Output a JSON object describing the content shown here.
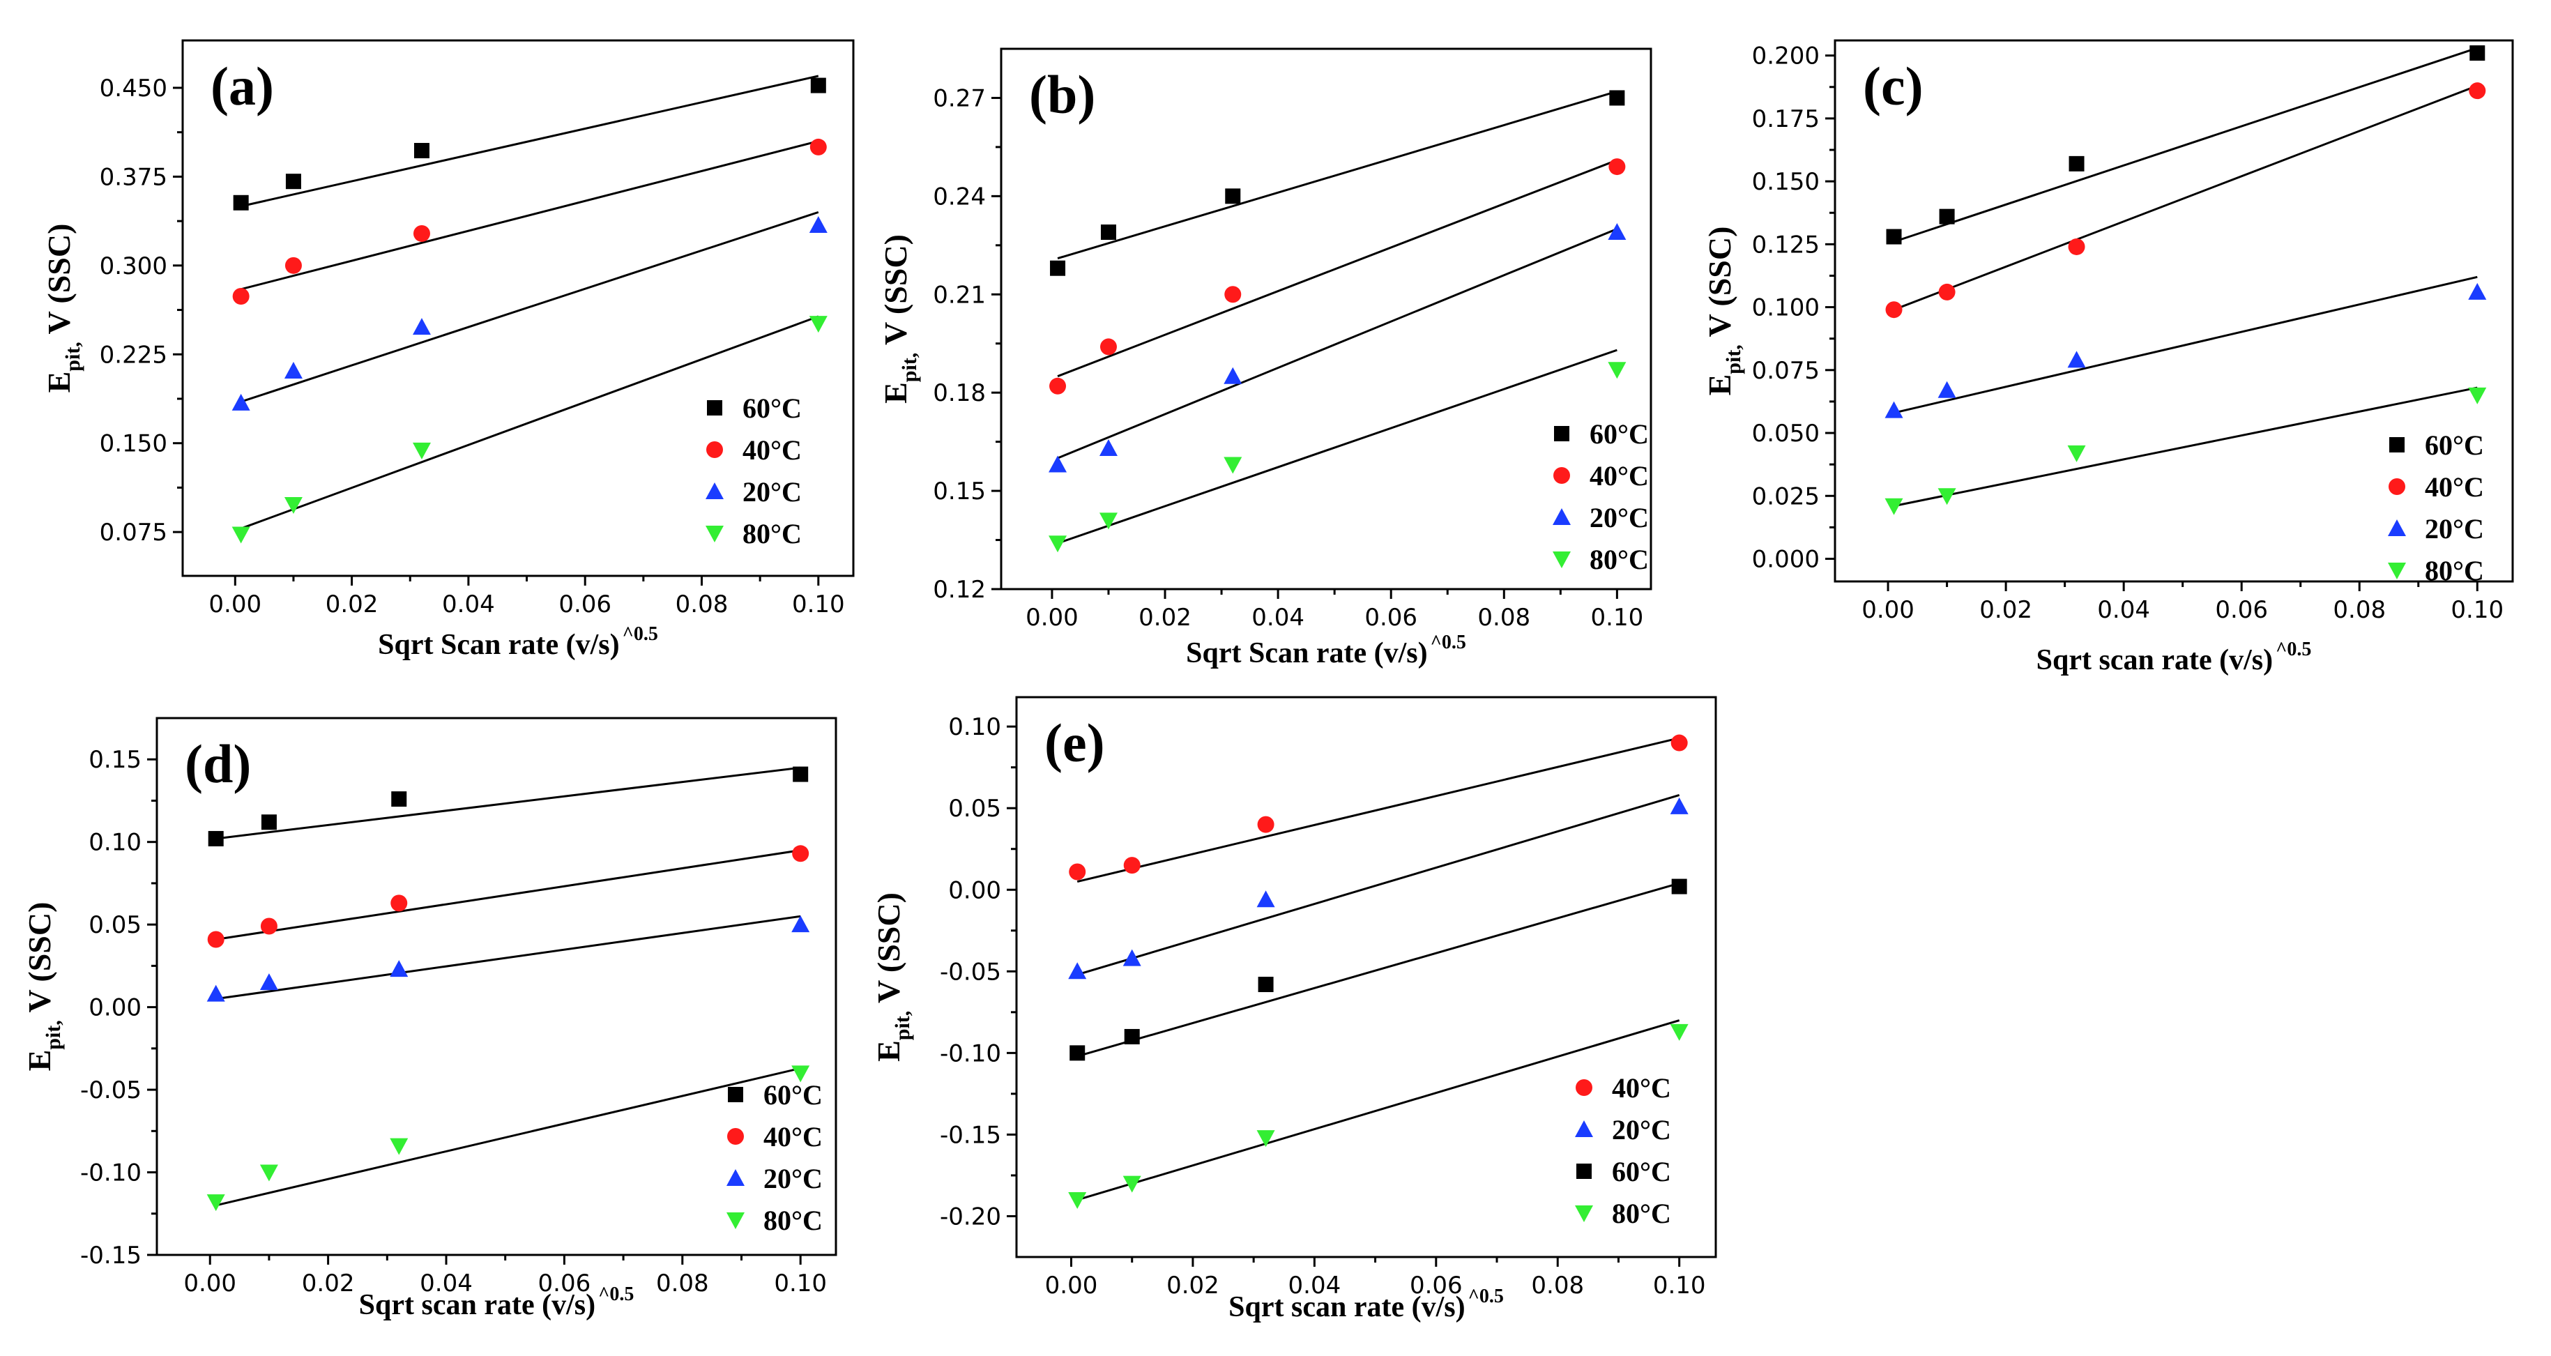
{
  "figure": {
    "colors": {
      "60°C": "#000000",
      "40°C": "#ff1a1a",
      "20°C": "#1a3cff",
      "80°C": "#33ee33"
    },
    "markers": {
      "60°C": "square",
      "40°C": "circle",
      "20°C": "triangle-up",
      "80°C": "triangle-down"
    }
  },
  "chart_data": [
    {
      "type": "scatter",
      "panel_label": "(a)",
      "xlabel": "Sqrt Scan rate (v/s)",
      "xlabel_sup": "^0.5",
      "ylabel_main": "E",
      "ylabel_sub": "pit,",
      "ylabel_rest": " V (SSC)",
      "xlim": [
        -0.009,
        0.106
      ],
      "ylim": [
        0.038,
        0.49
      ],
      "xticks": [
        0.0,
        0.02,
        0.04,
        0.06,
        0.08,
        0.1
      ],
      "xtick_labels": [
        "0.00",
        "0.02",
        "0.04",
        "0.06",
        "0.08",
        "0.10"
      ],
      "yticks": [
        0.075,
        0.15,
        0.225,
        0.3,
        0.375,
        0.45
      ],
      "ytick_labels": [
        "0.075",
        "0.150",
        "0.225",
        "0.300",
        "0.375",
        "0.450"
      ],
      "x": [
        0.001,
        0.01,
        0.032,
        0.1
      ],
      "legend_order": [
        "60°C",
        "40°C",
        "20°C",
        "80°C"
      ],
      "series": [
        {
          "name": "60°C",
          "values": [
            0.353,
            0.371,
            0.397,
            0.452
          ],
          "fit": [
            0.35,
            0.46
          ]
        },
        {
          "name": "40°C",
          "values": [
            0.274,
            0.3,
            0.327,
            0.4
          ],
          "fit": [
            0.28,
            0.405
          ]
        },
        {
          "name": "20°C",
          "values": [
            0.184,
            0.211,
            0.248,
            0.334
          ],
          "fit": [
            0.185,
            0.345
          ]
        },
        {
          "name": "80°C",
          "values": [
            0.073,
            0.098,
            0.144,
            0.251
          ],
          "fit": [
            0.078,
            0.257
          ]
        }
      ]
    },
    {
      "type": "scatter",
      "panel_label": "(b)",
      "xlabel": "Sqrt Scan rate (v/s)",
      "xlabel_sup": "^0.5",
      "ylabel_main": "E",
      "ylabel_sub": "pit,",
      "ylabel_rest": " V (SSC)",
      "xlim": [
        -0.009,
        0.106
      ],
      "ylim": [
        0.12,
        0.285
      ],
      "xticks": [
        0.0,
        0.02,
        0.04,
        0.06,
        0.08,
        0.1
      ],
      "xtick_labels": [
        "0.00",
        "0.02",
        "0.04",
        "0.06",
        "0.08",
        "0.10"
      ],
      "yticks": [
        0.12,
        0.15,
        0.18,
        0.21,
        0.24,
        0.27
      ],
      "ytick_labels": [
        "0.12",
        "0.15",
        "0.18",
        "0.21",
        "0.24",
        "0.27"
      ],
      "x": [
        0.001,
        0.01,
        0.032,
        0.1
      ],
      "legend_order": [
        "60°C",
        "40°C",
        "20°C",
        "80°C"
      ],
      "series": [
        {
          "name": "60°C",
          "values": [
            0.218,
            0.229,
            0.24,
            0.27
          ],
          "fit": [
            0.221,
            0.272
          ]
        },
        {
          "name": "40°C",
          "values": [
            0.182,
            0.194,
            0.21,
            0.249
          ],
          "fit": [
            0.185,
            0.251
          ]
        },
        {
          "name": "20°C",
          "values": [
            0.158,
            0.163,
            0.185,
            0.229
          ],
          "fit": [
            0.16,
            0.23
          ]
        },
        {
          "name": "80°C",
          "values": [
            0.134,
            0.141,
            0.158,
            0.187
          ],
          "fit": [
            0.134,
            0.193
          ]
        }
      ]
    },
    {
      "type": "scatter",
      "panel_label": "(c)",
      "xlabel": "Sqrt scan rate (v/s)",
      "xlabel_sup": "^0.5",
      "ylabel_main": "E",
      "ylabel_sub": "pit,",
      "ylabel_rest": " V (SSC)",
      "xlim": [
        -0.009,
        0.106
      ],
      "ylim": [
        -0.009,
        0.206
      ],
      "xticks": [
        0.0,
        0.02,
        0.04,
        0.06,
        0.08,
        0.1
      ],
      "xtick_labels": [
        "0.00",
        "0.02",
        "0.04",
        "0.06",
        "0.08",
        "0.10"
      ],
      "yticks": [
        0.0,
        0.025,
        0.05,
        0.075,
        0.1,
        0.125,
        0.15,
        0.175,
        0.2
      ],
      "ytick_labels": [
        "0.000",
        "0.025",
        "0.050",
        "0.075",
        "0.100",
        "0.125",
        "0.150",
        "0.175",
        "0.200"
      ],
      "x": [
        0.001,
        0.01,
        0.032,
        0.1
      ],
      "legend_order": [
        "60°C",
        "40°C",
        "20°C",
        "80°C"
      ],
      "series": [
        {
          "name": "60°C",
          "values": [
            0.128,
            0.136,
            0.157,
            0.201
          ],
          "fit": [
            0.126,
            0.203
          ]
        },
        {
          "name": "40°C",
          "values": [
            0.099,
            0.106,
            0.124,
            0.186
          ],
          "fit": [
            0.099,
            0.188
          ]
        },
        {
          "name": "20°C",
          "values": [
            0.059,
            0.067,
            0.079,
            0.106
          ],
          "fit": [
            0.058,
            0.112
          ]
        },
        {
          "name": "80°C",
          "values": [
            0.021,
            0.025,
            0.042,
            0.065
          ],
          "fit": [
            0.021,
            0.068
          ]
        }
      ]
    },
    {
      "type": "scatter",
      "panel_label": "(d)",
      "xlabel": "Sqrt scan rate (v/s)",
      "xlabel_sup": "^0.5",
      "ylabel_main": "E",
      "ylabel_sub": "pit,",
      "ylabel_rest": " V (SSC)",
      "xlim": [
        -0.009,
        0.106
      ],
      "ylim": [
        -0.15,
        0.175
      ],
      "xticks": [
        0.0,
        0.02,
        0.04,
        0.06,
        0.08,
        0.1
      ],
      "xtick_labels": [
        "0.00",
        "0.02",
        "0.04",
        "0.06",
        "0.08",
        "0.10"
      ],
      "yticks": [
        -0.15,
        -0.1,
        -0.05,
        0.0,
        0.05,
        0.1,
        0.15
      ],
      "ytick_labels": [
        "-0.15",
        "-0.10",
        "-0.05",
        "0.00",
        "0.05",
        "0.10",
        "0.15"
      ],
      "x": [
        0.001,
        0.01,
        0.032,
        0.1
      ],
      "legend_order": [
        "60°C",
        "40°C",
        "20°C",
        "80°C"
      ],
      "series": [
        {
          "name": "60°C",
          "values": [
            0.102,
            0.112,
            0.126,
            0.141
          ],
          "fit": [
            0.102,
            0.145
          ]
        },
        {
          "name": "40°C",
          "values": [
            0.041,
            0.049,
            0.063,
            0.093
          ],
          "fit": [
            0.041,
            0.095
          ]
        },
        {
          "name": "20°C",
          "values": [
            0.008,
            0.015,
            0.023,
            0.05
          ],
          "fit": [
            0.005,
            0.055
          ]
        },
        {
          "name": "80°C",
          "values": [
            -0.118,
            -0.1,
            -0.084,
            -0.04
          ],
          "fit": [
            -0.12,
            -0.037
          ]
        }
      ]
    },
    {
      "type": "scatter",
      "panel_label": "(e)",
      "xlabel": "Sqrt scan rate (v/s)",
      "xlabel_sup": "^0.5",
      "ylabel_main": "E",
      "ylabel_sub": "pit,",
      "ylabel_rest": " V (SSC)",
      "xlim": [
        -0.009,
        0.106
      ],
      "ylim": [
        -0.225,
        0.118
      ],
      "xticks": [
        0.0,
        0.02,
        0.04,
        0.06,
        0.08,
        0.1
      ],
      "xtick_labels": [
        "0.00",
        "0.02",
        "0.04",
        "0.06",
        "0.08",
        "0.10"
      ],
      "yticks": [
        -0.2,
        -0.15,
        -0.1,
        -0.05,
        0.0,
        0.05,
        0.1
      ],
      "ytick_labels": [
        "-0.20",
        "-0.15",
        "-0.10",
        "-0.05",
        "0.00",
        "0.05",
        "0.10"
      ],
      "x": [
        0.001,
        0.01,
        0.032,
        0.1
      ],
      "legend_order": [
        "40°C",
        "20°C",
        "60°C",
        "80°C"
      ],
      "series": [
        {
          "name": "40°C",
          "values": [
            0.011,
            0.015,
            0.04,
            0.09
          ],
          "fit": [
            0.005,
            0.093
          ]
        },
        {
          "name": "20°C",
          "values": [
            -0.05,
            -0.042,
            -0.006,
            0.051
          ],
          "fit": [
            -0.052,
            0.058
          ]
        },
        {
          "name": "60°C",
          "values": [
            -0.1,
            -0.09,
            -0.058,
            0.002
          ],
          "fit": [
            -0.102,
            0.004
          ]
        },
        {
          "name": "80°C",
          "values": [
            -0.19,
            -0.18,
            -0.152,
            -0.087
          ],
          "fit": [
            -0.19,
            -0.08
          ]
        }
      ]
    }
  ]
}
